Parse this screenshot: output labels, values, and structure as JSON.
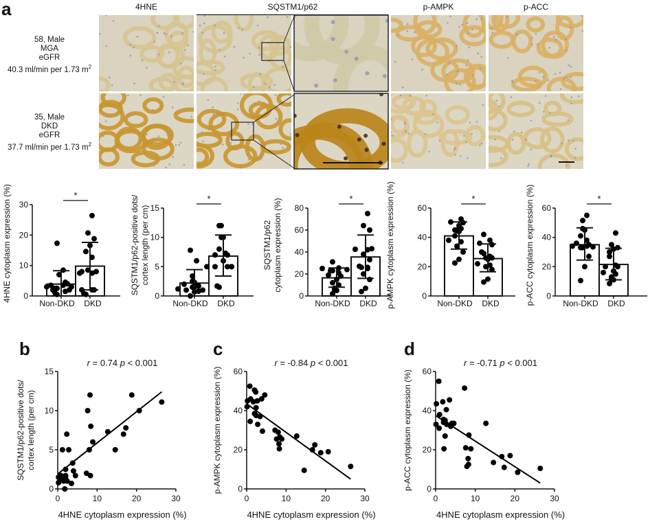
{
  "panel_labels": {
    "a": "a",
    "b": "b",
    "c": "c",
    "d": "d"
  },
  "micrographs": {
    "columns": [
      "4HNE",
      "SQSTM1/p62",
      "p-AMPK",
      "p-ACC"
    ],
    "rows": [
      {
        "line1": "58, Male",
        "line2": "MGA",
        "line3": "eGFR",
        "line4": "40.3 ml/min per 1.73 m",
        "sup": "2",
        "stain": "light"
      },
      {
        "line1": "35, Male",
        "line2": "DKD",
        "line3": "eGFR",
        "line4": "37.7 ml/min per 1.73 m",
        "sup": "2",
        "stain": "dark"
      }
    ],
    "colors": {
      "light_bg": "#d9d3bf",
      "light_tubule": "#d6c48f",
      "dark_bg": "#dcd6c4",
      "dark_tubule": "#c9962e",
      "ampk_tubule": "#d9b064",
      "nuclei": "#8e95b5"
    }
  },
  "chart_data": [
    {
      "type": "bar",
      "id": "bar-4hne",
      "ylabel": "4HNE cytoplasm expression (%)",
      "categories": [
        "Non-DKD",
        "DKD"
      ],
      "ylim": [
        0,
        30
      ],
      "yticks": [
        0,
        10,
        20,
        30
      ],
      "means": [
        3.9,
        9.8
      ],
      "sd_upper": [
        8.3,
        17.6
      ],
      "sd_lower": [
        0,
        2.0
      ],
      "significance": "*",
      "points": [
        [
          0.5,
          1.0,
          1.5,
          2.0,
          2.0,
          2.5,
          2.5,
          3.0,
          3.0,
          3.5,
          3.5,
          4.0,
          4.5,
          7.0,
          8.5,
          17.3
        ],
        [
          0.5,
          0.8,
          2.0,
          2.0,
          7.5,
          7.5,
          8.0,
          8.0,
          8.5,
          12.7,
          14.6,
          16.6,
          18.8,
          20.7,
          26.4,
          2.0
        ]
      ]
    },
    {
      "type": "bar",
      "id": "bar-p62",
      "ylabel_line1": "SQSTM1/p62-positive dots/",
      "ylabel_line2": "cortex length (per cm)",
      "categories": [
        "Non-DKD",
        "DKD"
      ],
      "ylim": [
        0,
        15
      ],
      "yticks": [
        0,
        5,
        10,
        15
      ],
      "means": [
        2.2,
        6.8
      ],
      "sd_upper": [
        4.5,
        10.4
      ],
      "sd_lower": [
        0,
        3.4
      ],
      "significance": "*",
      "points": [
        [
          0.0,
          0.7,
          0.8,
          1.0,
          1.0,
          1.2,
          1.5,
          1.5,
          1.7,
          1.8,
          2.0,
          2.3,
          2.5,
          3.4,
          6.0,
          7.8
        ],
        [
          1.5,
          1.7,
          5.0,
          5.0,
          5.0,
          5.0,
          6.0,
          7.0,
          7.0,
          7.3,
          8.0,
          10.0,
          10.0,
          12.0,
          12.0,
          5.0
        ]
      ]
    },
    {
      "type": "bar",
      "id": "bar-p62-cyto",
      "ylabel_line1": "SQSTM1/p62",
      "ylabel_line2": "cytoplasm expression (%)",
      "categories": [
        "Non-DKD",
        "DKD"
      ],
      "ylim": [
        0,
        80
      ],
      "yticks": [
        0,
        20,
        40,
        60,
        80
      ],
      "means": [
        16.5,
        35.5
      ],
      "sd_upper": [
        25.5,
        55.5
      ],
      "sd_lower": [
        8.0,
        16.0
      ],
      "significance": "*",
      "points": [
        [
          2.0,
          5.0,
          5.0,
          7.0,
          10.0,
          12.0,
          15.0,
          18.0,
          19.0,
          21.0,
          23.0,
          23.0,
          24.0,
          25.0,
          25.5,
          31.0
        ],
        [
          4.0,
          7.0,
          15.0,
          20.0,
          25.0,
          26.0,
          27.0,
          33.0,
          38.0,
          42.0,
          42.5,
          43.0,
          60.0,
          64.0,
          75.0,
          26.0
        ]
      ]
    },
    {
      "type": "bar",
      "id": "bar-ampk",
      "ylabel": "p-AMPK cytoplasm expression (%)",
      "categories": [
        "Non-DKD",
        "DKD"
      ],
      "ylim": [
        0,
        60
      ],
      "yticks": [
        0,
        20,
        40,
        60
      ],
      "means": [
        41.0,
        25.5
      ],
      "sd_upper": [
        50.5,
        35.5
      ],
      "sd_lower": [
        32.0,
        16.5
      ],
      "significance": "*",
      "points": [
        [
          22.5,
          25.0,
          30.0,
          34.0,
          37.0,
          41.0,
          44.0,
          44.5,
          45.0,
          45.0,
          46.0,
          48.0,
          50.0,
          50.5,
          52.5,
          38.0
        ],
        [
          9.5,
          11.5,
          18.0,
          20.0,
          21.0,
          22.0,
          25.0,
          26.0,
          26.0,
          27.0,
          29.0,
          30.0,
          35.0,
          36.0,
          38.0,
          42.0
        ]
      ]
    },
    {
      "type": "bar",
      "id": "bar-acc",
      "ylabel": "p-ACC cytoplasm expression (%)",
      "categories": [
        "Non-DKD",
        "DKD"
      ],
      "ylim": [
        0,
        60
      ],
      "yticks": [
        0,
        20,
        40,
        60
      ],
      "means": [
        35.0,
        21.5
      ],
      "sd_upper": [
        46.5,
        32.5
      ],
      "sd_lower": [
        24.5,
        11.0
      ],
      "significance": "*",
      "points": [
        [
          10.5,
          20.0,
          27.0,
          33.0,
          33.0,
          34.0,
          34.0,
          35.0,
          36.0,
          38.0,
          41.0,
          45.0,
          46.0,
          51.5,
          55.0,
          33.5
        ],
        [
          8.5,
          11.0,
          11.5,
          13.0,
          15.0,
          16.0,
          17.0,
          20.0,
          20.0,
          21.0,
          27.0,
          32.0,
          33.0,
          35.0,
          43.0,
          30.0
        ]
      ]
    },
    {
      "type": "scatter",
      "id": "scatter-b",
      "annotation_r": "r",
      "annotation_r_val": " = 0.74",
      "annotation_p": "p",
      "annotation_p_val": " < 0.001",
      "xlabel": "4HNE cytoplasm expression (%)",
      "ylabel_line1": "SQSTM1/p62-positive dots/",
      "ylabel_line2": "cortex length (per cm)",
      "xlim": [
        0,
        30
      ],
      "ylim": [
        0,
        15
      ],
      "xticks": [
        0,
        10,
        20,
        30
      ],
      "yticks": [
        0,
        5,
        10,
        15
      ],
      "fit": {
        "x": [
          0,
          26.4
        ],
        "y": [
          1.9,
          12.4
        ]
      },
      "points": [
        [
          0.2,
          0.8
        ],
        [
          0.2,
          1.5
        ],
        [
          0.8,
          1.7
        ],
        [
          1.0,
          1.2
        ],
        [
          1.2,
          5.0
        ],
        [
          1.5,
          1.0
        ],
        [
          1.8,
          0.0
        ],
        [
          2.0,
          1.5
        ],
        [
          2.0,
          1.7
        ],
        [
          2.0,
          2.5
        ],
        [
          2.3,
          7.0
        ],
        [
          2.4,
          1.0
        ],
        [
          2.8,
          5.0
        ],
        [
          3.5,
          0.7
        ],
        [
          3.8,
          3.3
        ],
        [
          4.0,
          2.3
        ],
        [
          4.5,
          1.7
        ],
        [
          7.3,
          2.0
        ],
        [
          7.6,
          10.0
        ],
        [
          8.0,
          5.0
        ],
        [
          8.2,
          12.0
        ],
        [
          8.3,
          1.7
        ],
        [
          8.4,
          8.0
        ],
        [
          8.9,
          6.0
        ],
        [
          12.7,
          7.3
        ],
        [
          14.6,
          5.0
        ],
        [
          16.7,
          7.0
        ],
        [
          17.3,
          7.8
        ],
        [
          18.8,
          12.0
        ],
        [
          20.7,
          10.0
        ],
        [
          26.4,
          11.1
        ]
      ]
    },
    {
      "type": "scatter",
      "id": "scatter-c",
      "annotation_r": "r",
      "annotation_r_val": " = -0.84",
      "annotation_p": "p",
      "annotation_p_val": " < 0.001",
      "xlabel": "4HNE cytoplasm expression (%)",
      "ylabel": "p-AMPK cytoplasm expression (%)",
      "xlim": [
        0,
        30
      ],
      "ylim": [
        0,
        60
      ],
      "xticks": [
        0,
        10,
        20,
        30
      ],
      "yticks": [
        0,
        20,
        40,
        60
      ],
      "fit": {
        "x": [
          0,
          26.4
        ],
        "y": [
          43.5,
          5.0
        ]
      },
      "points": [
        [
          0.1,
          42.0
        ],
        [
          0.2,
          45.0
        ],
        [
          0.8,
          52.5
        ],
        [
          0.9,
          34.5
        ],
        [
          1.0,
          46.0
        ],
        [
          1.7,
          44.5
        ],
        [
          2.0,
          50.5
        ],
        [
          2.0,
          38.5
        ],
        [
          2.3,
          49.5
        ],
        [
          2.4,
          41.5
        ],
        [
          2.4,
          37.5
        ],
        [
          2.7,
          45.0
        ],
        [
          2.8,
          33.0
        ],
        [
          3.4,
          37.0
        ],
        [
          3.8,
          46.0
        ],
        [
          4.0,
          29.5
        ],
        [
          4.6,
          48.0
        ],
        [
          7.2,
          30.0
        ],
        [
          7.6,
          25.5
        ],
        [
          8.0,
          29.0
        ],
        [
          8.2,
          23.0
        ],
        [
          8.3,
          20.5
        ],
        [
          8.4,
          26.5
        ],
        [
          8.9,
          25.5
        ],
        [
          12.7,
          27.0
        ],
        [
          14.6,
          9.5
        ],
        [
          16.7,
          20.0
        ],
        [
          17.3,
          22.5
        ],
        [
          18.8,
          18.5
        ],
        [
          20.7,
          19.0
        ],
        [
          26.4,
          11.5
        ]
      ]
    },
    {
      "type": "scatter",
      "id": "scatter-d",
      "annotation_r": "r",
      "annotation_r_val": " = -0.71",
      "annotation_p": "p",
      "annotation_p_val": " < 0.001",
      "xlabel": "4HNE cytoplasm expression (%)",
      "ylabel": "p-ACC cytoplasm expression (%)",
      "xlim": [
        0,
        30
      ],
      "ylim": [
        0,
        60
      ],
      "xticks": [
        0,
        10,
        20,
        30
      ],
      "yticks": [
        0,
        20,
        40,
        60
      ],
      "fit": {
        "x": [
          0,
          26.4
        ],
        "y": [
          37.5,
          3.0
        ]
      },
      "points": [
        [
          0.1,
          33.0
        ],
        [
          0.2,
          43.5
        ],
        [
          0.8,
          55.0
        ],
        [
          0.9,
          31.0
        ],
        [
          1.0,
          38.0
        ],
        [
          1.8,
          44.5
        ],
        [
          2.0,
          35.5
        ],
        [
          2.0,
          34.0
        ],
        [
          2.1,
          20.5
        ],
        [
          2.4,
          27.0
        ],
        [
          2.4,
          35.0
        ],
        [
          2.7,
          40.5
        ],
        [
          2.8,
          33.0
        ],
        [
          3.5,
          45.5
        ],
        [
          3.8,
          32.0
        ],
        [
          4.1,
          33.5
        ],
        [
          4.6,
          33.5
        ],
        [
          7.3,
          51.5
        ],
        [
          7.6,
          21.0
        ],
        [
          7.9,
          11.5
        ],
        [
          8.2,
          15.5
        ],
        [
          8.3,
          12.5
        ],
        [
          8.4,
          27.5
        ],
        [
          8.9,
          20.5
        ],
        [
          12.7,
          33.5
        ],
        [
          14.6,
          13.5
        ],
        [
          16.7,
          16.5
        ],
        [
          17.3,
          11.0
        ],
        [
          18.8,
          17.0
        ],
        [
          20.7,
          8.5
        ],
        [
          26.4,
          10.5
        ]
      ]
    }
  ]
}
